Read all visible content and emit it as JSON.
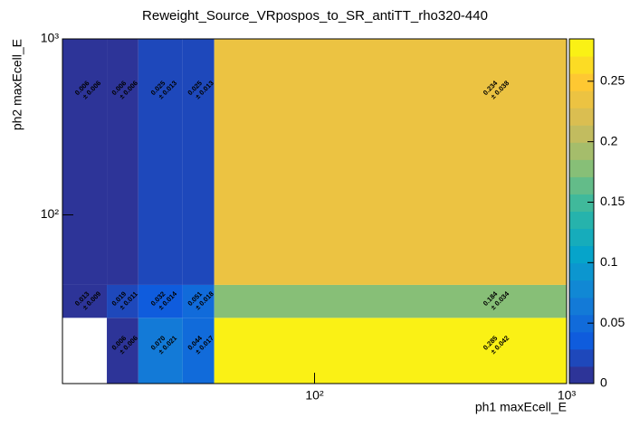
{
  "chart_data": {
    "type": "heatmap",
    "title": "Reweight_Source_VRpospos_to_SR_antiTT_rho320-440",
    "x_label": "ph1 maxEcell_E",
    "y_label": "ph2 maxEcell_E",
    "x_edges": [
      10,
      15,
      20,
      30,
      40,
      1000
    ],
    "y_edges": [
      11,
      26,
      40,
      1000
    ],
    "xlim": [
      10,
      1000
    ],
    "ylim": [
      11,
      1000
    ],
    "x_log": true,
    "y_log": true,
    "xticks": [
      {
        "value": 100,
        "label": "10²"
      },
      {
        "value": 1000,
        "label": "10³"
      }
    ],
    "yticks": [
      {
        "value": 100,
        "label": "10²"
      },
      {
        "value": 1000,
        "label": "10³"
      }
    ],
    "values": [
      [
        null,
        0.006,
        0.07,
        0.044,
        0.285
      ],
      [
        0.013,
        0.019,
        0.032,
        0.051,
        0.184
      ],
      [
        0.006,
        0.006,
        0.025,
        0.025,
        0.234
      ]
    ],
    "value_labels": [
      [
        null,
        "0.006",
        "0.070",
        "0.044",
        "0.285"
      ],
      [
        "0.013",
        "0.019",
        "0.032",
        "0.051",
        "0.184"
      ],
      [
        "0.006",
        "0.006",
        "0.025",
        "0.025",
        "0.234"
      ]
    ],
    "errors": [
      [
        null,
        0.006,
        0.021,
        0.017,
        0.042
      ],
      [
        0.009,
        0.011,
        0.014,
        0.018,
        0.034
      ],
      [
        0.006,
        0.006,
        0.013,
        0.013,
        0.038
      ]
    ],
    "error_labels": [
      [
        null,
        "± 0.006",
        "± 0.021",
        "± 0.017",
        "± 0.042"
      ],
      [
        "± 0.009",
        "± 0.011",
        "± 0.014",
        "± 0.018",
        "± 0.034"
      ],
      [
        "± 0.006",
        "± 0.006",
        "± 0.013",
        "± 0.013",
        "± 0.038"
      ]
    ],
    "zlim": [
      0,
      0.285
    ],
    "zticks": [
      0,
      0.05,
      0.1,
      0.15,
      0.2,
      0.25
    ],
    "contours": 20,
    "palette": [
      "#352a87",
      "#0f5cdd",
      "#1481d6",
      "#06a4ca",
      "#2eb7a4",
      "#87bf77",
      "#d1bb59",
      "#fec832",
      "#f9fb0e"
    ]
  }
}
